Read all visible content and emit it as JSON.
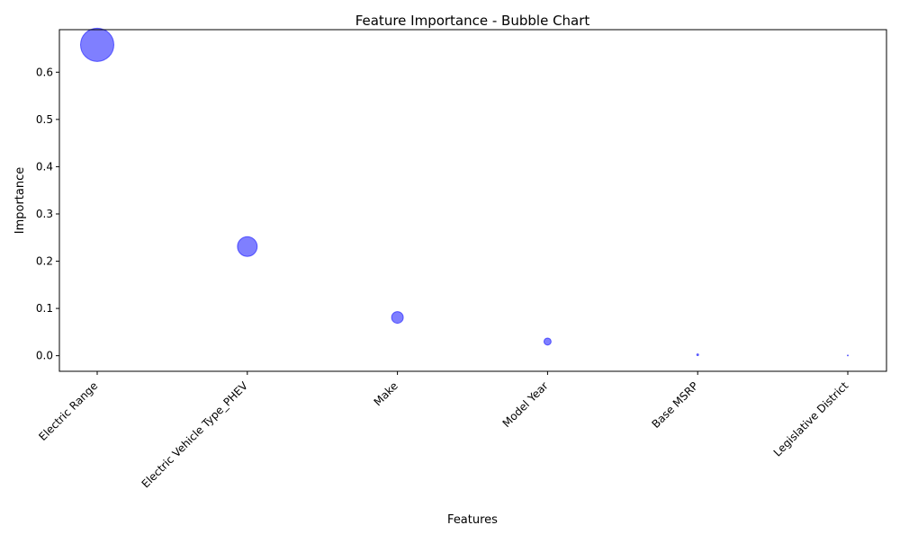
{
  "chart_data": {
    "type": "scatter",
    "title": "Feature Importance - Bubble Chart",
    "xlabel": "Features",
    "ylabel": "Importance",
    "categories": [
      "Electric Range",
      "Electric Vehicle Type_PHEV",
      "Make",
      "Model Year",
      "Base MSRP",
      "Legislative District"
    ],
    "values": [
      0.658,
      0.231,
      0.081,
      0.03,
      0.002,
      0.0005
    ],
    "ylim": [
      -0.033,
      0.69
    ],
    "yticks": [
      "0.0",
      "0.1",
      "0.2",
      "0.3",
      "0.4",
      "0.5",
      "0.6"
    ],
    "ytick_values": [
      0.0,
      0.1,
      0.2,
      0.3,
      0.4,
      0.5,
      0.6
    ],
    "bubble_size_encodes": "importance",
    "bubble_color": "#0000ff",
    "bubble_alpha": 0.5,
    "grid": false,
    "legend": "none"
  }
}
